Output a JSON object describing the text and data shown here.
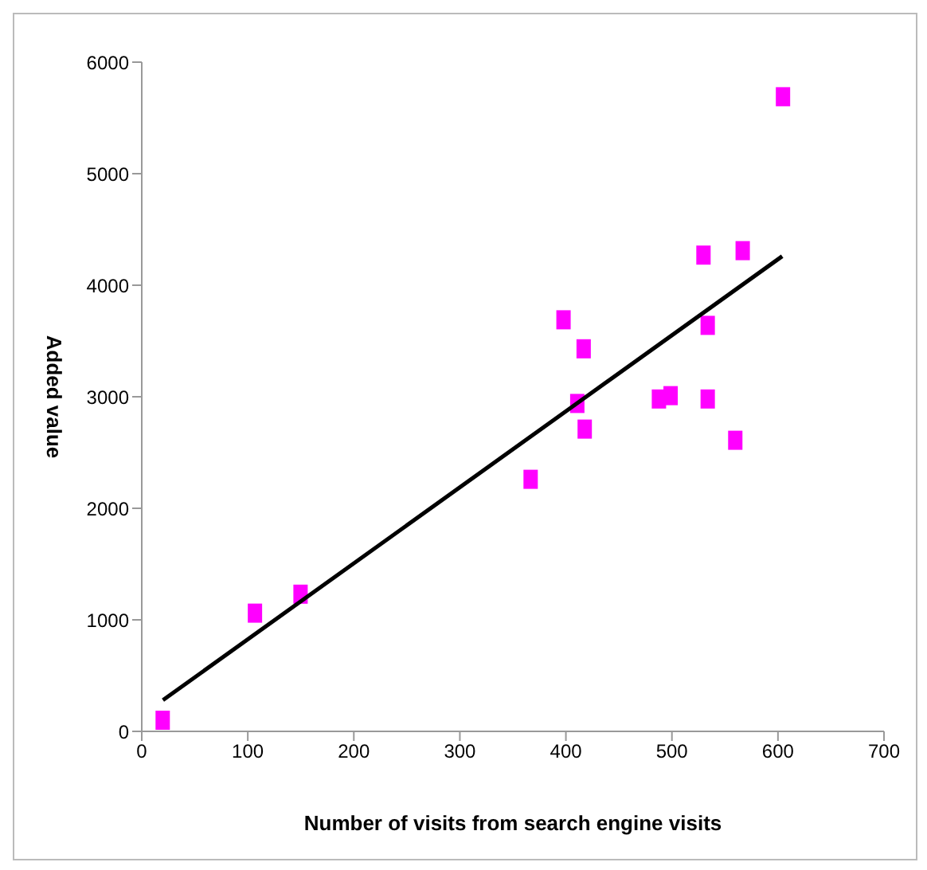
{
  "chart_data": {
    "type": "scatter",
    "xlabel": "Number of visits from search engine visits",
    "ylabel": "Added value",
    "xlim": [
      0,
      700
    ],
    "xticks": [
      0,
      100,
      200,
      300,
      400,
      500,
      600,
      700
    ],
    "ylim": [
      0,
      6000
    ],
    "yticks": [
      0,
      1000,
      2000,
      3000,
      4000,
      5000,
      6000
    ],
    "grid": false,
    "legend": false,
    "marker": "square",
    "series": [
      {
        "color": "#ff00ff",
        "x": [
          19,
          106,
          149,
          366,
          397,
          416,
          410,
          417,
          487,
          498,
          529,
          533,
          533,
          559,
          566,
          604
        ],
        "values": [
          100,
          1060,
          1230,
          2260,
          3690,
          3430,
          2940,
          2710,
          2980,
          3010,
          4270,
          3640,
          2980,
          2610,
          4310,
          5690
        ]
      },
      {
        "type": "line",
        "color": "#000000",
        "marker": "none",
        "x": [
          20,
          604
        ],
        "values": [
          280,
          4260
        ]
      }
    ]
  }
}
